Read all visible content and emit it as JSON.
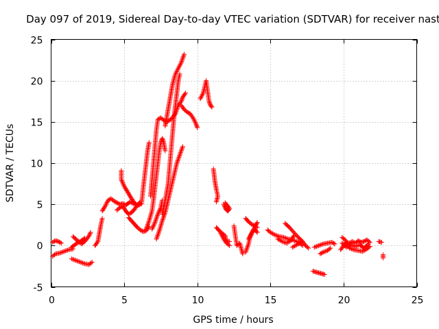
{
  "chart_data": {
    "type": "scatter",
    "title": "Day 097 of 2019, Sidereal Day-to-day VTEC variation (SDTVAR) for receiver nast",
    "xlabel": "GPS time / hours",
    "ylabel": "SDTVAR / TECUs",
    "xlim": [
      0,
      25
    ],
    "ylim": [
      -5,
      25
    ],
    "x_ticks": [
      0,
      5,
      10,
      15,
      20,
      25
    ],
    "y_ticks": [
      -5,
      0,
      5,
      10,
      15,
      20,
      25
    ],
    "x_tick_labels": [
      "0",
      "5",
      "10",
      "15",
      "20",
      "25"
    ],
    "y_tick_labels": [
      "-5",
      "0",
      "5",
      "10",
      "15",
      "20",
      "25"
    ],
    "grid": true,
    "marker": "+",
    "color": "#ff0000",
    "series": [
      {
        "name": "SDTVAR",
        "tracks": [
          [
            [
              0.1,
              0.4
            ],
            [
              0.3,
              0.6
            ],
            [
              0.5,
              0.5
            ],
            [
              0.7,
              0.3
            ]
          ],
          [
            [
              0.1,
              -1.3
            ],
            [
              0.3,
              -1.0
            ],
            [
              0.6,
              -0.9
            ],
            [
              0.9,
              -0.7
            ],
            [
              1.2,
              -0.5
            ],
            [
              1.5,
              -0.4
            ]
          ],
          [
            [
              1.4,
              -1.6
            ],
            [
              1.7,
              -1.8
            ],
            [
              2.0,
              -2.0
            ],
            [
              2.3,
              -2.2
            ],
            [
              2.6,
              -2.3
            ],
            [
              2.8,
              -2.0
            ]
          ],
          [
            [
              1.5,
              1.1
            ],
            [
              1.8,
              0.6
            ],
            [
              2.1,
              0.2
            ],
            [
              2.4,
              0.7
            ],
            [
              2.6,
              1.2
            ],
            [
              2.7,
              1.6
            ]
          ],
          [
            [
              1.4,
              -0.2
            ],
            [
              1.7,
              0.2
            ],
            [
              2.0,
              0.5
            ],
            [
              2.3,
              0.9
            ]
          ],
          [
            [
              3.0,
              0.0
            ],
            [
              3.2,
              0.5
            ],
            [
              3.3,
              1.5
            ],
            [
              3.4,
              2.5
            ],
            [
              3.5,
              3.3
            ]
          ],
          [
            [
              3.5,
              4.2
            ],
            [
              3.7,
              4.8
            ],
            [
              3.9,
              5.5
            ],
            [
              4.1,
              5.7
            ],
            [
              4.3,
              5.4
            ],
            [
              4.5,
              5.2
            ],
            [
              4.7,
              5.0
            ],
            [
              4.9,
              5.1
            ],
            [
              5.1,
              4.9
            ],
            [
              5.4,
              5.3
            ],
            [
              5.7,
              5.0
            ],
            [
              6.0,
              4.9
            ],
            [
              6.2,
              5.1
            ]
          ],
          [
            [
              4.5,
              4.3
            ],
            [
              4.7,
              4.6
            ],
            [
              4.9,
              4.8
            ],
            [
              5.1,
              4.2
            ],
            [
              5.3,
              3.8
            ],
            [
              5.5,
              4.0
            ],
            [
              5.7,
              4.4
            ],
            [
              5.9,
              4.9
            ],
            [
              6.1,
              5.3
            ]
          ],
          [
            [
              4.8,
              9.1
            ],
            [
              4.8,
              8.0
            ],
            [
              5.0,
              7.2
            ],
            [
              5.2,
              6.6
            ],
            [
              5.4,
              6.0
            ],
            [
              5.6,
              5.4
            ],
            [
              5.8,
              5.0
            ]
          ],
          [
            [
              5.3,
              3.4
            ],
            [
              5.5,
              3.0
            ],
            [
              5.7,
              2.6
            ],
            [
              5.9,
              2.2
            ],
            [
              6.1,
              1.9
            ],
            [
              6.3,
              1.7
            ],
            [
              6.5,
              1.8
            ],
            [
              6.7,
              2.3
            ]
          ],
          [
            [
              6.2,
              5.3
            ],
            [
              6.3,
              7.0
            ],
            [
              6.4,
              8.5
            ],
            [
              6.5,
              10.0
            ],
            [
              6.6,
              11.5
            ],
            [
              6.7,
              12.5
            ]
          ],
          [
            [
              6.5,
              2.0
            ],
            [
              6.7,
              3.0
            ],
            [
              6.9,
              4.2
            ],
            [
              7.0,
              5.5
            ],
            [
              7.1,
              7.0
            ],
            [
              7.2,
              8.5
            ],
            [
              7.3,
              10.0
            ],
            [
              7.4,
              11.5
            ],
            [
              7.5,
              12.5
            ],
            [
              7.6,
              13.0
            ],
            [
              7.7,
              12.5
            ],
            [
              7.8,
              11.5
            ]
          ],
          [
            [
              6.8,
              6.0
            ],
            [
              6.9,
              8.0
            ],
            [
              7.0,
              10.0
            ],
            [
              7.1,
              12.0
            ],
            [
              7.2,
              14.0
            ],
            [
              7.3,
              15.3
            ],
            [
              7.5,
              15.5
            ],
            [
              7.7,
              15.2
            ],
            [
              7.9,
              15.0
            ],
            [
              8.1,
              15.2
            ],
            [
              8.3,
              15.5
            ],
            [
              8.5,
              16.0
            ],
            [
              8.7,
              17.0
            ],
            [
              8.9,
              17.5
            ],
            [
              9.0,
              18.0
            ],
            [
              9.2,
              18.5
            ]
          ],
          [
            [
              6.9,
              2.0
            ],
            [
              7.1,
              2.8
            ],
            [
              7.3,
              3.8
            ],
            [
              7.5,
              4.6
            ],
            [
              7.6,
              5.5
            ]
          ],
          [
            [
              7.2,
              0.8
            ],
            [
              7.4,
              1.8
            ],
            [
              7.6,
              3.0
            ],
            [
              7.8,
              4.0
            ],
            [
              8.0,
              5.5
            ],
            [
              8.2,
              7.0
            ],
            [
              8.4,
              8.5
            ],
            [
              8.6,
              10.0
            ],
            [
              8.8,
              11.0
            ],
            [
              9.0,
              12.0
            ]
          ],
          [
            [
              7.6,
              3.8
            ],
            [
              7.8,
              5.5
            ],
            [
              8.0,
              7.5
            ],
            [
              8.1,
              9.5
            ],
            [
              8.2,
              11.5
            ],
            [
              8.3,
              13.5
            ],
            [
              8.4,
              15.5
            ],
            [
              8.5,
              17.0
            ],
            [
              8.6,
              18.5
            ],
            [
              8.7,
              20.0
            ],
            [
              8.8,
              20.8
            ]
          ],
          [
            [
              7.8,
              14.5
            ],
            [
              7.9,
              15.5
            ],
            [
              8.0,
              16.5
            ],
            [
              8.1,
              17.5
            ],
            [
              8.2,
              18.5
            ],
            [
              8.3,
              19.5
            ],
            [
              8.4,
              20.2
            ],
            [
              8.5,
              20.8
            ],
            [
              8.7,
              21.5
            ],
            [
              8.9,
              22.2
            ],
            [
              9.1,
              23.2
            ]
          ],
          [
            [
              8.9,
              17.0
            ],
            [
              9.1,
              16.5
            ],
            [
              9.3,
              16.2
            ],
            [
              9.5,
              16.0
            ],
            [
              9.7,
              15.5
            ],
            [
              9.9,
              14.8
            ],
            [
              10.0,
              14.3
            ]
          ],
          [
            [
              10.2,
              17.8
            ],
            [
              10.4,
              18.5
            ],
            [
              10.5,
              19.2
            ],
            [
              10.6,
              20.0
            ],
            [
              10.8,
              17.5
            ],
            [
              10.9,
              17.0
            ],
            [
              11.0,
              16.8
            ]
          ],
          [
            [
              11.1,
              9.3
            ],
            [
              11.2,
              7.8
            ],
            [
              11.3,
              6.8
            ],
            [
              11.4,
              6.0
            ],
            [
              11.3,
              5.3
            ]
          ],
          [
            [
              11.3,
              2.2
            ],
            [
              11.5,
              1.8
            ],
            [
              11.7,
              1.5
            ],
            [
              11.9,
              1.2
            ],
            [
              12.0,
              0.5
            ],
            [
              12.2,
              0.5
            ]
          ],
          [
            [
              11.6,
              1.5
            ],
            [
              11.8,
              0.8
            ],
            [
              12.0,
              0.3
            ],
            [
              12.2,
              0.0
            ]
          ],
          [
            [
              11.8,
              5.0
            ],
            [
              11.9,
              4.6
            ],
            [
              12.0,
              4.3
            ],
            [
              12.1,
              4.2
            ],
            [
              12.2,
              4.5
            ],
            [
              11.9,
              5.2
            ]
          ],
          [
            [
              12.5,
              2.4
            ],
            [
              12.7,
              0.0
            ],
            [
              12.9,
              0.3
            ],
            [
              13.1,
              -1.0
            ]
          ],
          [
            [
              13.3,
              -0.8
            ],
            [
              13.5,
              0.2
            ],
            [
              13.6,
              1.0
            ],
            [
              13.8,
              1.8
            ],
            [
              14.0,
              2.5
            ],
            [
              14.1,
              2.8
            ]
          ],
          [
            [
              13.5,
              0.8
            ],
            [
              13.7,
              1.5
            ],
            [
              13.9,
              2.0
            ],
            [
              14.1,
              1.6
            ]
          ],
          [
            [
              13.3,
              3.3
            ],
            [
              13.5,
              2.9
            ],
            [
              13.7,
              2.6
            ],
            [
              13.9,
              2.4
            ],
            [
              14.1,
              2.2
            ]
          ],
          [
            [
              14.8,
              1.9
            ],
            [
              15.0,
              1.6
            ],
            [
              15.3,
              1.3
            ],
            [
              15.6,
              1.1
            ],
            [
              15.9,
              1.0
            ],
            [
              16.2,
              0.8
            ],
            [
              16.5,
              0.7
            ],
            [
              16.8,
              0.5
            ],
            [
              17.0,
              0.3
            ],
            [
              17.2,
              0.0
            ]
          ],
          [
            [
              15.5,
              0.8
            ],
            [
              15.8,
              0.5
            ],
            [
              16.1,
              0.3
            ],
            [
              16.4,
              0.6
            ],
            [
              16.6,
              1.2
            ]
          ],
          [
            [
              16.0,
              2.7
            ],
            [
              16.3,
              2.2
            ],
            [
              16.6,
              1.6
            ],
            [
              16.9,
              1.0
            ],
            [
              17.2,
              0.5
            ],
            [
              17.4,
              0.0
            ],
            [
              17.6,
              -0.3
            ]
          ],
          [
            [
              16.5,
              -0.2
            ],
            [
              16.8,
              0.1
            ],
            [
              17.1,
              0.4
            ]
          ],
          [
            [
              18.0,
              -0.2
            ],
            [
              18.3,
              0.0
            ],
            [
              18.6,
              0.2
            ],
            [
              18.9,
              0.3
            ],
            [
              19.2,
              0.4
            ],
            [
              19.4,
              0.2
            ]
          ],
          [
            [
              17.9,
              -3.1
            ],
            [
              18.1,
              -3.2
            ],
            [
              18.3,
              -3.3
            ],
            [
              18.5,
              -3.4
            ],
            [
              18.7,
              -3.5
            ]
          ],
          [
            [
              18.4,
              -1.0
            ],
            [
              18.6,
              -0.8
            ],
            [
              18.9,
              -0.6
            ],
            [
              19.1,
              -0.3
            ]
          ],
          [
            [
              19.8,
              -0.5
            ],
            [
              20.0,
              0.0
            ],
            [
              20.2,
              0.4
            ],
            [
              20.4,
              0.3
            ],
            [
              20.6,
              0.5
            ],
            [
              20.8,
              0.3
            ],
            [
              21.0,
              0.6
            ],
            [
              21.2,
              0.4
            ],
            [
              21.4,
              0.5
            ],
            [
              21.6,
              0.7
            ],
            [
              21.8,
              0.4
            ]
          ],
          [
            [
              19.9,
              1.0
            ],
            [
              20.1,
              0.7
            ],
            [
              20.4,
              -0.3
            ],
            [
              20.7,
              -0.5
            ],
            [
              21.0,
              -0.6
            ],
            [
              21.3,
              -0.7
            ],
            [
              21.6,
              -0.4
            ],
            [
              21.8,
              -0.1
            ]
          ],
          [
            [
              19.9,
              0.3
            ],
            [
              20.2,
              -0.2
            ],
            [
              20.5,
              0.1
            ],
            [
              20.8,
              -0.1
            ],
            [
              21.1,
              0.1
            ],
            [
              21.4,
              -0.3
            ],
            [
              21.7,
              0.2
            ]
          ],
          [
            [
              22.4,
              0.5
            ],
            [
              22.6,
              0.4
            ]
          ],
          [
            [
              22.7,
              -1.1
            ],
            [
              22.7,
              -1.5
            ]
          ]
        ]
      }
    ]
  }
}
